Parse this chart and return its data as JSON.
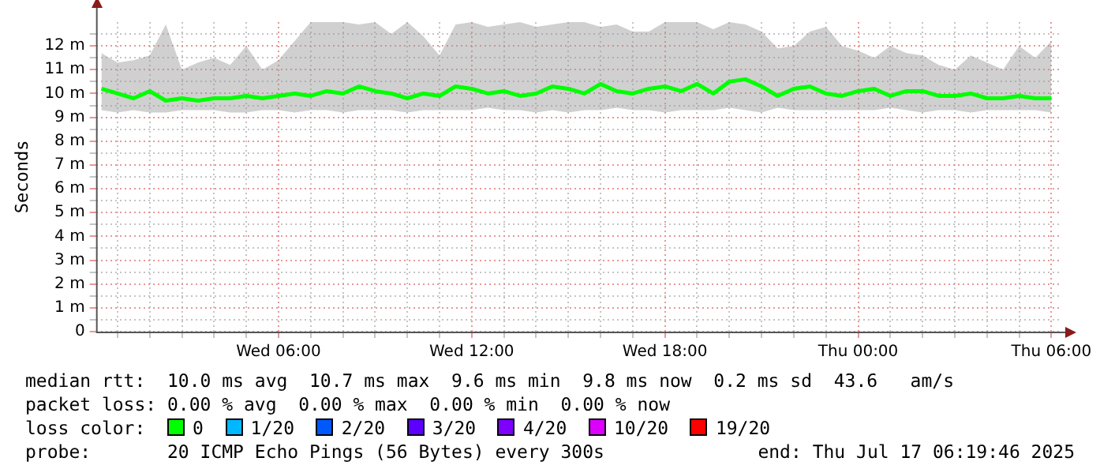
{
  "chart_data": {
    "type": "line",
    "ylabel": "Seconds",
    "legend_title": "loss color:",
    "legend": "bottom",
    "grid": true,
    "marker": "none",
    "line_style": "solid",
    "xlim": [
      "2025-07-16T00:20",
      "2025-07-17T06:20"
    ],
    "xticks": [
      {
        "value": "2025-07-16T01:00",
        "label": null
      },
      {
        "value": "2025-07-16T02:00",
        "label": null
      },
      {
        "value": "2025-07-16T03:00",
        "label": null
      },
      {
        "value": "2025-07-16T04:00",
        "label": null
      },
      {
        "value": "2025-07-16T05:00",
        "label": null
      },
      {
        "value": "2025-07-16T06:00",
        "label": "Wed 06:00"
      },
      {
        "value": "2025-07-16T07:00",
        "label": null
      },
      {
        "value": "2025-07-16T08:00",
        "label": null
      },
      {
        "value": "2025-07-16T09:00",
        "label": null
      },
      {
        "value": "2025-07-16T10:00",
        "label": null
      },
      {
        "value": "2025-07-16T11:00",
        "label": null
      },
      {
        "value": "2025-07-16T12:00",
        "label": "Wed 12:00"
      },
      {
        "value": "2025-07-16T13:00",
        "label": null
      },
      {
        "value": "2025-07-16T14:00",
        "label": null
      },
      {
        "value": "2025-07-16T15:00",
        "label": null
      },
      {
        "value": "2025-07-16T16:00",
        "label": null
      },
      {
        "value": "2025-07-16T17:00",
        "label": null
      },
      {
        "value": "2025-07-16T18:00",
        "label": "Wed 18:00"
      },
      {
        "value": "2025-07-16T19:00",
        "label": null
      },
      {
        "value": "2025-07-16T20:00",
        "label": null
      },
      {
        "value": "2025-07-16T21:00",
        "label": null
      },
      {
        "value": "2025-07-16T22:00",
        "label": null
      },
      {
        "value": "2025-07-16T23:00",
        "label": null
      },
      {
        "value": "2025-07-17T00:00",
        "label": "Thu 00:00"
      },
      {
        "value": "2025-07-17T01:00",
        "label": null
      },
      {
        "value": "2025-07-17T02:00",
        "label": null
      },
      {
        "value": "2025-07-17T03:00",
        "label": null
      },
      {
        "value": "2025-07-17T04:00",
        "label": null
      },
      {
        "value": "2025-07-17T05:00",
        "label": null
      },
      {
        "value": "2025-07-17T06:00",
        "label": "Thu 06:00"
      }
    ],
    "ylim": [
      0,
      13
    ],
    "yticks": [
      0,
      {
        "value": 0.5,
        "label": null
      },
      {
        "value": 1,
        "label": "1 m"
      },
      {
        "value": 1.5,
        "label": null
      },
      {
        "value": 2,
        "label": "2 m"
      },
      {
        "value": 2.5,
        "label": null
      },
      {
        "value": 3,
        "label": "3 m"
      },
      {
        "value": 3.5,
        "label": null
      },
      {
        "value": 4,
        "label": "4 m"
      },
      {
        "value": 4.5,
        "label": null
      },
      {
        "value": 5,
        "label": "5 m"
      },
      {
        "value": 5.5,
        "label": null
      },
      {
        "value": 6,
        "label": "6 m"
      },
      {
        "value": 6.5,
        "label": null
      },
      {
        "value": 7,
        "label": "7 m"
      },
      {
        "value": 7.5,
        "label": null
      },
      {
        "value": 8,
        "label": "8 m"
      },
      {
        "value": 8.5,
        "label": null
      },
      {
        "value": 9,
        "label": "9 m"
      },
      {
        "value": 9.5,
        "label": null
      },
      {
        "value": 10,
        "label": "10 m"
      },
      {
        "value": 10.5,
        "label": null
      },
      {
        "value": 11,
        "label": "11 m"
      },
      {
        "value": 11.5,
        "label": null
      },
      {
        "value": 12,
        "label": "12 m"
      },
      {
        "value": 12.5,
        "label": null
      }
    ],
    "x": [
      "2025-07-16T00:30",
      "2025-07-16T01:00",
      "2025-07-16T01:30",
      "2025-07-16T02:00",
      "2025-07-16T02:30",
      "2025-07-16T03:00",
      "2025-07-16T03:30",
      "2025-07-16T04:00",
      "2025-07-16T04:30",
      "2025-07-16T05:00",
      "2025-07-16T05:30",
      "2025-07-16T06:00",
      "2025-07-16T06:30",
      "2025-07-16T07:00",
      "2025-07-16T07:30",
      "2025-07-16T08:00",
      "2025-07-16T08:30",
      "2025-07-16T09:00",
      "2025-07-16T09:30",
      "2025-07-16T10:00",
      "2025-07-16T10:30",
      "2025-07-16T11:00",
      "2025-07-16T11:30",
      "2025-07-16T12:00",
      "2025-07-16T12:30",
      "2025-07-16T13:00",
      "2025-07-16T13:30",
      "2025-07-16T14:00",
      "2025-07-16T14:30",
      "2025-07-16T15:00",
      "2025-07-16T15:30",
      "2025-07-16T16:00",
      "2025-07-16T16:30",
      "2025-07-16T17:00",
      "2025-07-16T17:30",
      "2025-07-16T18:00",
      "2025-07-16T18:30",
      "2025-07-16T19:00",
      "2025-07-16T19:30",
      "2025-07-16T20:00",
      "2025-07-16T20:30",
      "2025-07-16T21:00",
      "2025-07-16T21:30",
      "2025-07-16T22:00",
      "2025-07-16T22:30",
      "2025-07-16T23:00",
      "2025-07-16T23:30",
      "2025-07-17T00:00",
      "2025-07-17T00:30",
      "2025-07-17T01:00",
      "2025-07-17T01:30",
      "2025-07-17T02:00",
      "2025-07-17T02:30",
      "2025-07-17T03:00",
      "2025-07-17T03:30",
      "2025-07-17T04:00",
      "2025-07-17T04:30",
      "2025-07-17T05:00",
      "2025-07-17T05:30",
      "2025-07-17T06:00"
    ],
    "series": [
      {
        "name": "0",
        "color": "#00ff00",
        "values": [
          10.2,
          10.0,
          9.8,
          10.1,
          9.7,
          9.8,
          9.7,
          9.8,
          9.8,
          9.9,
          9.8,
          9.9,
          10.0,
          9.9,
          10.1,
          10.0,
          10.3,
          10.1,
          10.0,
          9.8,
          10.0,
          9.9,
          10.3,
          10.2,
          10.0,
          10.1,
          9.9,
          10.0,
          10.3,
          10.2,
          10.0,
          10.4,
          10.1,
          10.0,
          10.2,
          10.3,
          10.1,
          10.4,
          10.0,
          10.5,
          10.6,
          10.3,
          9.9,
          10.2,
          10.3,
          10.0,
          9.9,
          10.1,
          10.2,
          9.9,
          10.1,
          10.1,
          9.9,
          9.9,
          10.0,
          9.8,
          9.8,
          9.9,
          9.8,
          9.8
        ],
        "lower": [
          9.3,
          9.2,
          9.3,
          9.2,
          9.2,
          9.3,
          9.3,
          9.3,
          9.2,
          9.2,
          9.3,
          9.3,
          9.2,
          9.3,
          9.3,
          9.2,
          9.3,
          9.3,
          9.3,
          9.2,
          9.3,
          9.3,
          9.3,
          9.3,
          9.4,
          9.3,
          9.3,
          9.2,
          9.3,
          9.2,
          9.3,
          9.3,
          9.4,
          9.3,
          9.3,
          9.2,
          9.3,
          9.3,
          9.3,
          9.4,
          9.3,
          9.2,
          9.4,
          9.3,
          9.3,
          9.3,
          9.3,
          9.3,
          9.3,
          9.4,
          9.3,
          9.2,
          9.3,
          9.3,
          9.2,
          9.3,
          9.3,
          9.3,
          9.3,
          9.2
        ],
        "upper": [
          11.7,
          11.3,
          11.4,
          11.6,
          12.9,
          11.0,
          11.3,
          11.5,
          11.2,
          12.0,
          11.0,
          11.4,
          12.2,
          13.0,
          13.0,
          13.0,
          12.9,
          13.0,
          12.5,
          13.0,
          12.4,
          11.6,
          12.9,
          13.0,
          12.8,
          12.9,
          13.0,
          12.8,
          12.9,
          13.0,
          13.0,
          12.8,
          12.9,
          12.6,
          12.6,
          13.0,
          13.0,
          13.0,
          12.7,
          13.0,
          12.9,
          12.6,
          11.9,
          12.0,
          12.6,
          12.8,
          12.0,
          11.8,
          11.5,
          12.0,
          11.7,
          11.6,
          11.2,
          11.0,
          11.6,
          11.3,
          11.0,
          12.0,
          11.5,
          12.2
        ]
      },
      {
        "name": "1/20",
        "color": "#00b8ff",
        "values": [
          null,
          null,
          null,
          null,
          null,
          null,
          null,
          null,
          null,
          null,
          null,
          null,
          null,
          null,
          null,
          null,
          null,
          null,
          null,
          null,
          null,
          null,
          null,
          null,
          null,
          null,
          null,
          null,
          null,
          null,
          null,
          null,
          null,
          null,
          null,
          null,
          null,
          null,
          null,
          null,
          null,
          null,
          null,
          null,
          null,
          null,
          null,
          null,
          null,
          null,
          null,
          null,
          null,
          null,
          null,
          null,
          null,
          null,
          null,
          null
        ]
      },
      {
        "name": "2/20",
        "color": "#0059ff",
        "values": [
          null,
          null,
          null,
          null,
          null,
          null,
          null,
          null,
          null,
          null,
          null,
          null,
          null,
          null,
          null,
          null,
          null,
          null,
          null,
          null,
          null,
          null,
          null,
          null,
          null,
          null,
          null,
          null,
          null,
          null,
          null,
          null,
          null,
          null,
          null,
          null,
          null,
          null,
          null,
          null,
          null,
          null,
          null,
          null,
          null,
          null,
          null,
          null,
          null,
          null,
          null,
          null,
          null,
          null,
          null,
          null,
          null,
          null,
          null,
          null
        ]
      },
      {
        "name": "3/20",
        "color": "#5e00ff",
        "values": [
          null,
          null,
          null,
          null,
          null,
          null,
          null,
          null,
          null,
          null,
          null,
          null,
          null,
          null,
          null,
          null,
          null,
          null,
          null,
          null,
          null,
          null,
          null,
          null,
          null,
          null,
          null,
          null,
          null,
          null,
          null,
          null,
          null,
          null,
          null,
          null,
          null,
          null,
          null,
          null,
          null,
          null,
          null,
          null,
          null,
          null,
          null,
          null,
          null,
          null,
          null,
          null,
          null,
          null,
          null,
          null,
          null,
          null,
          null,
          null
        ]
      },
      {
        "name": "4/20",
        "color": "#7e00ff",
        "values": [
          null,
          null,
          null,
          null,
          null,
          null,
          null,
          null,
          null,
          null,
          null,
          null,
          null,
          null,
          null,
          null,
          null,
          null,
          null,
          null,
          null,
          null,
          null,
          null,
          null,
          null,
          null,
          null,
          null,
          null,
          null,
          null,
          null,
          null,
          null,
          null,
          null,
          null,
          null,
          null,
          null,
          null,
          null,
          null,
          null,
          null,
          null,
          null,
          null,
          null,
          null,
          null,
          null,
          null,
          null,
          null,
          null,
          null,
          null,
          null
        ]
      },
      {
        "name": "10/20",
        "color": "#dd00ff",
        "values": [
          null,
          null,
          null,
          null,
          null,
          null,
          null,
          null,
          null,
          null,
          null,
          null,
          null,
          null,
          null,
          null,
          null,
          null,
          null,
          null,
          null,
          null,
          null,
          null,
          null,
          null,
          null,
          null,
          null,
          null,
          null,
          null,
          null,
          null,
          null,
          null,
          null,
          null,
          null,
          null,
          null,
          null,
          null,
          null,
          null,
          null,
          null,
          null,
          null,
          null,
          null,
          null,
          null,
          null,
          null,
          null,
          null,
          null,
          null,
          null
        ]
      },
      {
        "name": "19/20",
        "color": "#ff0000",
        "values": [
          null,
          null,
          null,
          null,
          null,
          null,
          null,
          null,
          null,
          null,
          null,
          null,
          null,
          null,
          null,
          null,
          null,
          null,
          null,
          null,
          null,
          null,
          null,
          null,
          null,
          null,
          null,
          null,
          null,
          null,
          null,
          null,
          null,
          null,
          null,
          null,
          null,
          null,
          null,
          null,
          null,
          null,
          null,
          null,
          null,
          null,
          null,
          null,
          null,
          null,
          null,
          null,
          null,
          null,
          null,
          null,
          null,
          null,
          null,
          null
        ]
      }
    ],
    "annotations": [
      "median rtt:  10.0 ms avg  10.7 ms max  9.6 ms min  9.8 ms now  0.2 ms sd  43.6   am/s",
      "packet loss: 0.00 % avg  0.00 % max  0.00 % min  0.00 % now",
      "probe:       20 ICMP Echo Pings (56 Bytes) every 300s",
      "end: Thu Jul 17 06:19:46 2025"
    ]
  }
}
